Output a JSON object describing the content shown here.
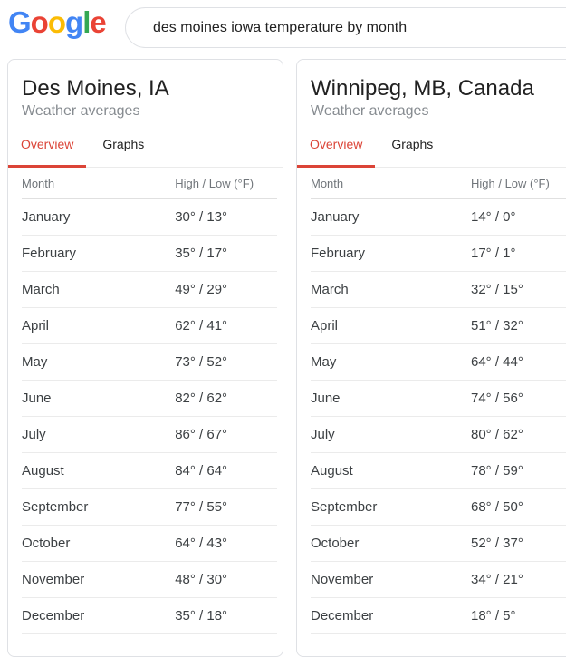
{
  "search": {
    "logo": [
      {
        "ch": "G",
        "color": "#4285F4"
      },
      {
        "ch": "o",
        "color": "#EA4335"
      },
      {
        "ch": "o",
        "color": "#FBBC05"
      },
      {
        "ch": "g",
        "color": "#4285F4"
      },
      {
        "ch": "l",
        "color": "#34A853"
      },
      {
        "ch": "e",
        "color": "#EA4335"
      }
    ],
    "query": "des moines iowa temperature by month"
  },
  "cards": [
    {
      "title": "Des Moines, IA",
      "subtitle": "Weather averages",
      "tabs": [
        {
          "label": "Overview",
          "active": true
        },
        {
          "label": "Graphs",
          "active": false
        }
      ],
      "table": {
        "columns": [
          "Month",
          "High / Low (°F)"
        ],
        "rows": [
          {
            "month": "January",
            "high_low": "30° / 13°"
          },
          {
            "month": "February",
            "high_low": "35° / 17°"
          },
          {
            "month": "March",
            "high_low": "49° / 29°"
          },
          {
            "month": "April",
            "high_low": "62° / 41°"
          },
          {
            "month": "May",
            "high_low": "73° / 52°"
          },
          {
            "month": "June",
            "high_low": "82° / 62°"
          },
          {
            "month": "July",
            "high_low": "86° / 67°"
          },
          {
            "month": "August",
            "high_low": "84° / 64°"
          },
          {
            "month": "September",
            "high_low": "77° / 55°"
          },
          {
            "month": "October",
            "high_low": "64° / 43°"
          },
          {
            "month": "November",
            "high_low": "48° / 30°"
          },
          {
            "month": "December",
            "high_low": "35° / 18°"
          }
        ]
      }
    },
    {
      "title": "Winnipeg, MB, Canada",
      "subtitle": "Weather averages",
      "tabs": [
        {
          "label": "Overview",
          "active": true
        },
        {
          "label": "Graphs",
          "active": false
        }
      ],
      "table": {
        "columns": [
          "Month",
          "High / Low (°F)"
        ],
        "rows": [
          {
            "month": "January",
            "high_low": "14° / 0°"
          },
          {
            "month": "February",
            "high_low": "17° / 1°"
          },
          {
            "month": "March",
            "high_low": "32° / 15°"
          },
          {
            "month": "April",
            "high_low": "51° / 32°"
          },
          {
            "month": "May",
            "high_low": "64° / 44°"
          },
          {
            "month": "June",
            "high_low": "74° / 56°"
          },
          {
            "month": "July",
            "high_low": "80° / 62°"
          },
          {
            "month": "August",
            "high_low": "78° / 59°"
          },
          {
            "month": "September",
            "high_low": "68° / 50°"
          },
          {
            "month": "October",
            "high_low": "52° / 37°"
          },
          {
            "month": "November",
            "high_low": "34° / 21°"
          },
          {
            "month": "December",
            "high_low": "18° / 5°"
          }
        ]
      }
    }
  ],
  "colors": {
    "logo_blue": "#4285F4",
    "logo_red": "#EA4335",
    "logo_yellow": "#FBBC05",
    "logo_green": "#34A853",
    "tab_active_red": "#db4437",
    "card_border": "#dfe1e5",
    "row_divider": "#ebebeb",
    "header_divider": "#e0e0e0",
    "text_primary": "#212121",
    "text_secondary": "#70757a",
    "subtitle_gray": "#868b90"
  }
}
